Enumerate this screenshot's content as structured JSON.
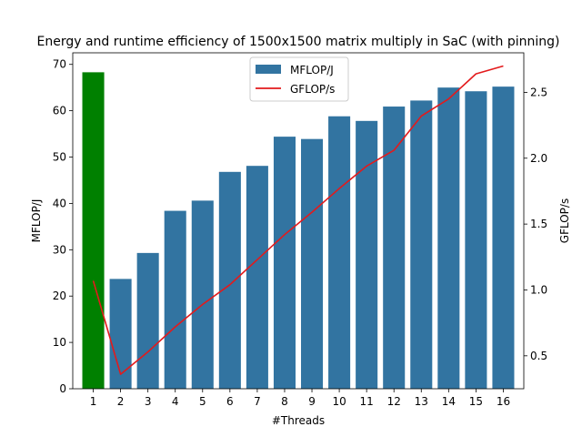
{
  "chart_data": {
    "type": "bar",
    "title": "Energy and runtime efficiency of 1500x1500 matrix multiply in SaC (with pinning)",
    "xlabel": "#Threads",
    "ylabel_left": "MFLOP/J",
    "ylabel_right": "GFLOP/s",
    "categories": [
      "1",
      "2",
      "3",
      "4",
      "5",
      "6",
      "7",
      "8",
      "9",
      "10",
      "11",
      "12",
      "13",
      "14",
      "15",
      "16"
    ],
    "series": [
      {
        "name": "MFLOP/J",
        "kind": "bar",
        "axis": "left",
        "color": "#3274a1",
        "highlight": {
          "index": 0,
          "color": "#008000"
        },
        "values": [
          68.3,
          23.7,
          29.3,
          38.4,
          40.6,
          46.8,
          48.1,
          54.4,
          53.9,
          58.8,
          57.8,
          60.9,
          62.2,
          65.0,
          64.2,
          65.2
        ]
      },
      {
        "name": "GFLOP/s",
        "kind": "line",
        "axis": "right",
        "color": "#e31a1c",
        "values": [
          1.07,
          0.36,
          0.53,
          0.72,
          0.89,
          1.04,
          1.23,
          1.42,
          1.59,
          1.77,
          1.94,
          2.06,
          2.32,
          2.45,
          2.64,
          2.7
        ]
      }
    ],
    "ylim_left": [
      0,
      72.5
    ],
    "yticks_left": [
      0,
      10,
      20,
      30,
      40,
      50,
      60,
      70
    ],
    "ylim_right": [
      0.25,
      2.8
    ],
    "yticks_right": [
      0.5,
      1.0,
      1.5,
      2.0,
      2.5
    ],
    "yticks_right_labels": [
      "0.5",
      "1.0",
      "1.5",
      "2.0",
      "2.5"
    ],
    "grid": false,
    "legend_position": "top-center"
  }
}
